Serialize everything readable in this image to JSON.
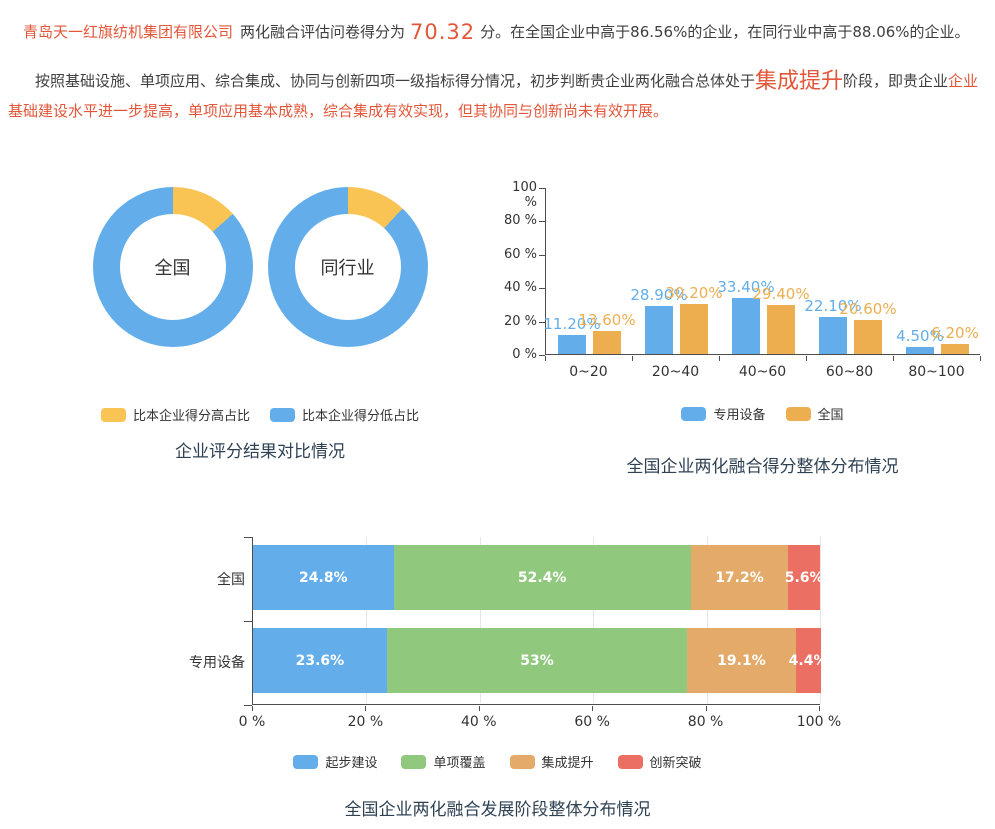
{
  "colors": {
    "accent": "#e2573a",
    "blue": "#63aeea",
    "donut_yellow": "#f9c454",
    "bar_orange": "#ecae4f",
    "green": "#90c97e",
    "stack_orange": "#e3aa69",
    "red": "#eb6f62",
    "title_text": "#2f4254",
    "body_text": "#3f3f3f"
  },
  "page": {
    "paragraph1": {
      "company": "青岛天一红旗纺机集团有限公司",
      "lead": "两化融合评估问卷得分为",
      "score": "70.32",
      "tail": "分。在全国企业中高于86.56%的企业，在同行业中高于88.06%的企业。"
    },
    "paragraph2": {
      "lead": "按照基础设施、单项应用、综合集成、协同与创新四项一级指标得分情况，初步判断贵企业两化融合总体处于",
      "stage": "集成提升",
      "mid": "阶段，即贵企业",
      "highlight": "企业基础建设水平进一步提高，单项应用基本成熟，综合集成有效实现，但其协同与创新尚未有效开展。"
    }
  },
  "chart_data": [
    {
      "id": "score_compare_donuts",
      "type": "pie",
      "title": "企业评分结果对比情况",
      "legend": [
        {
          "label": "比本企业得分高占比",
          "color": "#f9c454"
        },
        {
          "label": "比本企业得分低占比",
          "color": "#63aeea"
        }
      ],
      "donuts": [
        {
          "label": "全国",
          "higher_pct": 13.44,
          "lower_pct": 86.56
        },
        {
          "label": "同行业",
          "higher_pct": 11.94,
          "lower_pct": 88.06
        }
      ],
      "note_layout": "ring start at 12 o'clock, higher(yellow) slice clockwise first"
    },
    {
      "id": "score_distribution",
      "type": "bar",
      "title": "全国企业两化融合得分整体分布情况",
      "categories": [
        "0~20",
        "20~40",
        "40~60",
        "60~80",
        "80~100"
      ],
      "series": [
        {
          "name": "专用设备",
          "color": "#63aeea",
          "values": [
            11.2,
            28.9,
            33.4,
            22.1,
            4.5
          ],
          "labels": [
            "11.20%",
            "28.90%",
            "33.40%",
            "22.10%",
            "4.50%"
          ]
        },
        {
          "name": "全国",
          "color": "#ecae4f",
          "values": [
            13.6,
            30.2,
            29.4,
            20.6,
            6.2
          ],
          "labels": [
            "13.60%",
            "30.20%",
            "29.40%",
            "20.60%",
            "6.20%"
          ]
        }
      ],
      "ylabels": [
        "0 %",
        "20 %",
        "40 %",
        "60 %",
        "80 %",
        "100 %"
      ],
      "ylim": [
        0,
        100
      ],
      "grid": false,
      "legend_position": "bottom"
    },
    {
      "id": "stage_distribution",
      "type": "bar-stacked-horizontal",
      "title": "全国企业两化融合发展阶段整体分布情况",
      "categories": [
        "全国",
        "专用设备"
      ],
      "series": [
        {
          "name": "起步建设",
          "color": "#63aeea",
          "values": [
            24.8,
            23.6
          ]
        },
        {
          "name": "单项覆盖",
          "color": "#90c97e",
          "values": [
            52.4,
            53
          ]
        },
        {
          "name": "集成提升",
          "color": "#e3aa69",
          "values": [
            17.2,
            19.1
          ]
        },
        {
          "name": "创新突破",
          "color": "#eb6f62",
          "values": [
            5.6,
            4.4
          ]
        }
      ],
      "bar_labels": [
        [
          "24.8%",
          "52.4%",
          "17.2%",
          "5.6%"
        ],
        [
          "23.6%",
          "53%",
          "19.1%",
          "4.4%"
        ]
      ],
      "xlabels": [
        "0 %",
        "20 %",
        "40 %",
        "60 %",
        "80 %",
        "100 %"
      ],
      "xlim": [
        0,
        100
      ],
      "grid": true,
      "legend_position": "bottom"
    }
  ]
}
